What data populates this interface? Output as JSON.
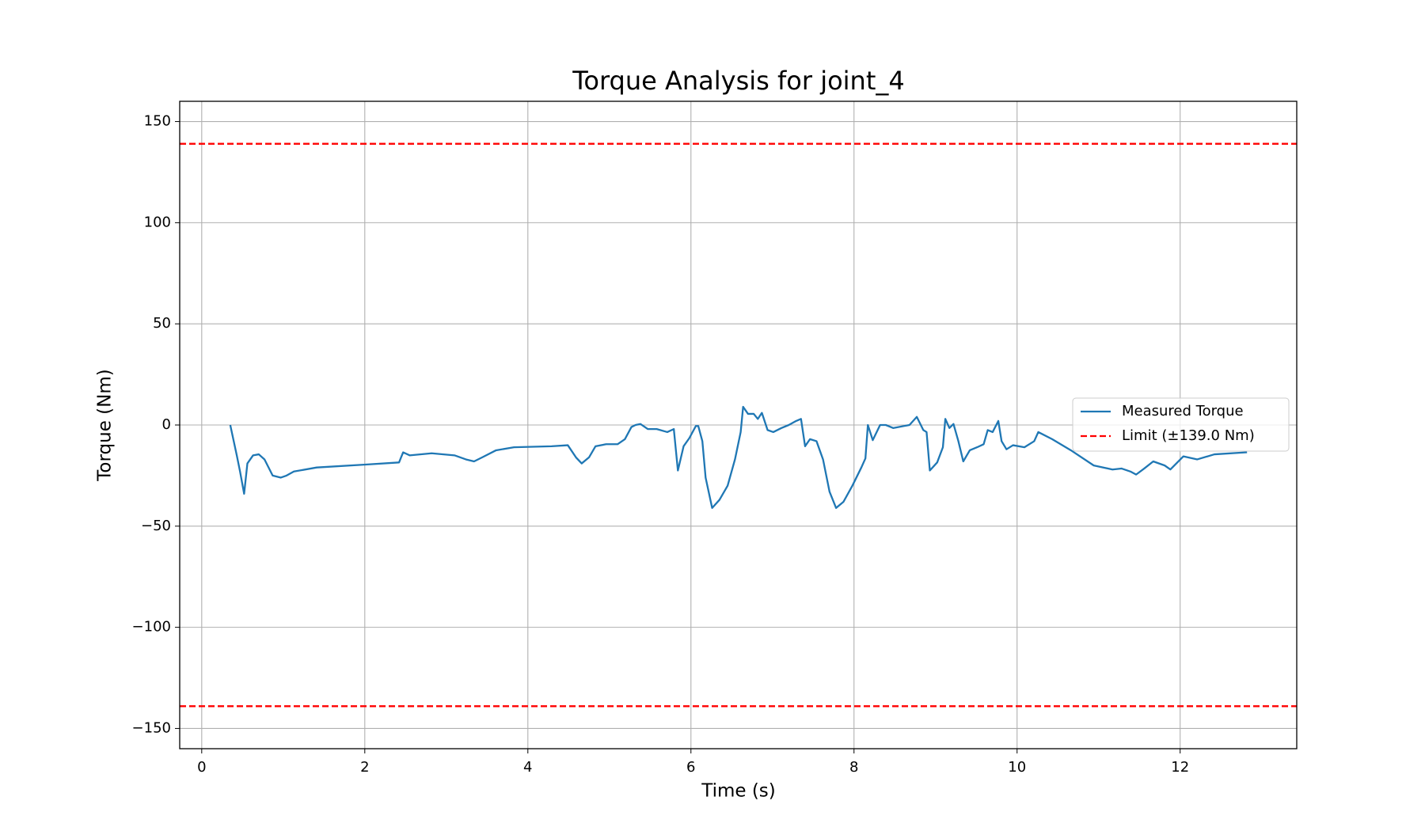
{
  "chart_data": {
    "type": "line",
    "title": "Torque Analysis for joint_4",
    "xlabel": "Time (s)",
    "ylabel": "Torque (Nm)",
    "xlim": [
      -0.27,
      13.43
    ],
    "ylim": [
      -160,
      160
    ],
    "xticks": [
      0,
      2,
      4,
      6,
      8,
      10,
      12
    ],
    "yticks": [
      {
        "value": -150,
        "label": "−150"
      },
      {
        "value": -100,
        "label": "−100"
      },
      {
        "value": -50,
        "label": "−50"
      },
      0,
      50,
      100,
      150
    ],
    "grid": true,
    "legend": "center right",
    "series": [
      {
        "name": "Measured Torque",
        "color": "#1f77b4",
        "x": [
          0.35,
          0.43,
          0.47,
          0.52,
          0.56,
          0.63,
          0.7,
          0.77,
          0.87,
          0.97,
          1.04,
          1.13,
          1.41,
          2.03,
          2.42,
          2.47,
          2.55,
          2.82,
          3.1,
          3.24,
          3.34,
          3.44,
          3.61,
          3.83,
          4.29,
          4.49,
          4.59,
          4.66,
          4.75,
          4.83,
          4.96,
          5.1,
          5.19,
          5.27,
          5.32,
          5.38,
          5.47,
          5.58,
          5.71,
          5.79,
          5.84,
          5.91,
          5.98,
          6.06,
          6.09,
          6.14,
          6.18,
          6.26,
          6.35,
          6.45,
          6.54,
          6.61,
          6.64,
          6.7,
          6.77,
          6.82,
          6.87,
          6.94,
          7.01,
          7.11,
          7.2,
          7.29,
          7.35,
          7.4,
          7.46,
          7.54,
          7.62,
          7.7,
          7.78,
          7.87,
          7.98,
          8.09,
          8.14,
          8.17,
          8.23,
          8.32,
          8.39,
          8.48,
          8.68,
          8.77,
          8.85,
          8.89,
          8.93,
          9.02,
          9.09,
          9.12,
          9.17,
          9.22,
          9.28,
          9.34,
          9.42,
          9.51,
          9.59,
          9.64,
          9.7,
          9.77,
          9.81,
          9.87,
          9.95,
          10.09,
          10.21,
          10.26,
          10.43,
          10.66,
          10.94,
          11.17,
          11.28,
          11.39,
          11.46,
          11.56,
          11.67,
          11.81,
          11.88,
          12.04,
          12.21,
          12.42,
          12.82
        ],
        "values": [
          0,
          -15,
          -23,
          -34,
          -19,
          -15,
          -14.5,
          -17,
          -25,
          -26,
          -25,
          -23,
          -21,
          -19.5,
          -18.5,
          -13.5,
          -15,
          -14,
          -15,
          -17,
          -18,
          -16,
          -12.5,
          -11,
          -10.5,
          -10,
          -16,
          -19,
          -16,
          -10.5,
          -9.5,
          -9.5,
          -7,
          -1,
          0,
          0.5,
          -2,
          -2,
          -3.5,
          -2,
          -22.5,
          -10.5,
          -6.5,
          -0.5,
          -0.5,
          -8,
          -26,
          -41,
          -37,
          -30,
          -17,
          -3.5,
          9,
          5.5,
          5.5,
          3,
          6,
          -2.5,
          -3.5,
          -1.5,
          0,
          2,
          3,
          -10.5,
          -7,
          -8,
          -17,
          -33,
          -41,
          -38,
          -30,
          -21,
          -16.5,
          0,
          -7.5,
          0,
          0,
          -1.5,
          0,
          4,
          -2.5,
          -3.5,
          -22.5,
          -18.5,
          -11,
          3,
          -1.5,
          0.5,
          -8,
          -18,
          -12.5,
          -11,
          -9.5,
          -2.5,
          -3.5,
          2,
          -8,
          -12,
          -10,
          -11,
          -8,
          -3.5,
          -7,
          -12.5,
          -20,
          -22,
          -21.5,
          -23,
          -24.5,
          -21.5,
          -18,
          -20,
          -22,
          -15.5,
          -17,
          -14.5,
          -13.5
        ]
      }
    ],
    "reference_lines": {
      "name": "Limit (±139.0 Nm)",
      "color": "#ff0000",
      "values": [
        139,
        -139
      ]
    }
  }
}
